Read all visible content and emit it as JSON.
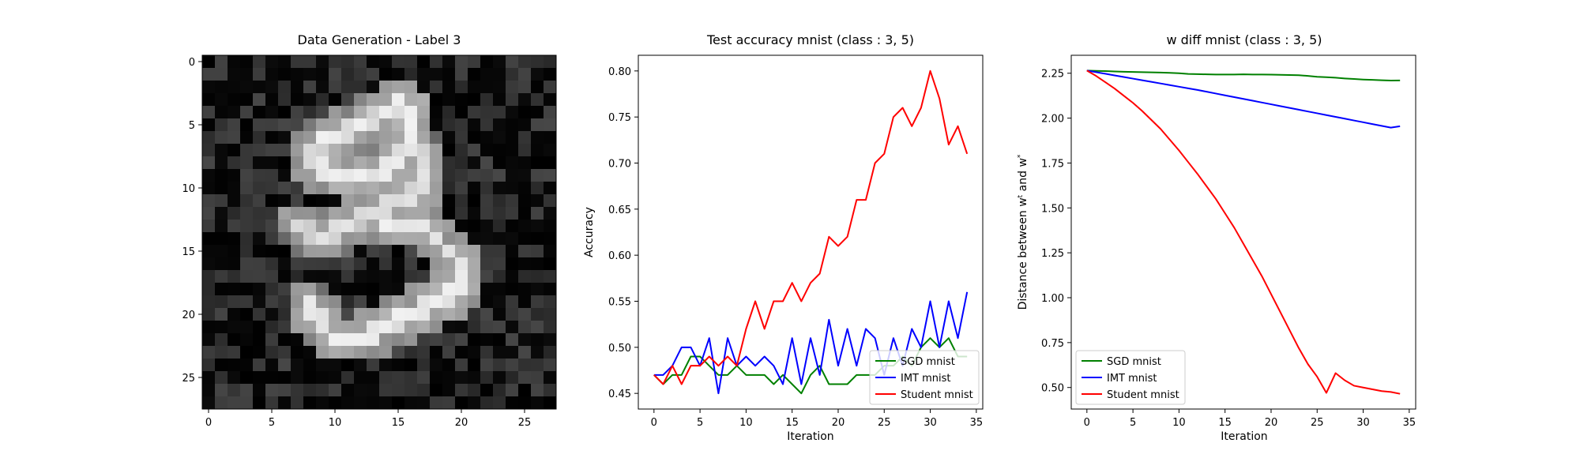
{
  "chart_data": [
    {
      "type": "heatmap",
      "title": "Data Generation - Label 3",
      "xticks": [
        0,
        5,
        10,
        15,
        20,
        25
      ],
      "yticks": [
        0,
        5,
        10,
        15,
        20,
        25
      ],
      "xlim": [
        -0.5,
        27.5
      ],
      "ylim": [
        27.5,
        -0.5
      ],
      "colormap": "gray",
      "grid_size": [
        28,
        28
      ],
      "strokes": [
        {
          "p": [
            [
              8,
              7
            ],
            [
              10,
              6
            ],
            [
              12,
              5
            ],
            [
              14,
              4
            ],
            [
              15,
              3
            ],
            [
              16,
              4
            ],
            [
              16,
              6
            ],
            [
              15,
              8
            ],
            [
              13,
              9
            ],
            [
              10,
              9
            ],
            [
              8,
              8
            ]
          ],
          "v": 0.95
        },
        {
          "p": [
            [
              16,
              6
            ],
            [
              17,
              8
            ],
            [
              17,
              10
            ],
            [
              15,
              11
            ],
            [
              13,
              12
            ],
            [
              11,
              13
            ],
            [
              9,
              14
            ],
            [
              7,
              13
            ]
          ],
          "v": 0.9
        },
        {
          "p": [
            [
              13,
              12
            ],
            [
              15,
              13
            ],
            [
              17,
              13
            ],
            [
              18,
              14
            ],
            [
              19,
              15
            ],
            [
              20,
              16
            ],
            [
              20,
              18
            ],
            [
              18,
              19
            ],
            [
              16,
              20
            ],
            [
              14,
              21
            ],
            [
              12,
              22
            ],
            [
              10,
              22
            ],
            [
              9,
              21
            ],
            [
              8,
              19
            ]
          ],
          "v": 0.95
        }
      ]
    },
    {
      "type": "line",
      "title": "Test accuracy mnist (class : 3, 5)",
      "xlabel": "Iteration",
      "ylabel": "Accuracy",
      "xlim": [
        -1.7,
        35.7
      ],
      "ylim": [
        0.433,
        0.817
      ],
      "xticks": [
        0,
        5,
        10,
        15,
        20,
        25,
        30,
        35
      ],
      "yticks": [
        0.45,
        0.5,
        0.55,
        0.6,
        0.65,
        0.7,
        0.75,
        0.8
      ],
      "ytick_labels": [
        "0.45",
        "0.50",
        "0.55",
        "0.60",
        "0.65",
        "0.70",
        "0.75",
        "0.80"
      ],
      "x": [
        0,
        1,
        2,
        3,
        4,
        5,
        6,
        7,
        8,
        9,
        10,
        11,
        12,
        13,
        14,
        15,
        16,
        17,
        18,
        19,
        20,
        21,
        22,
        23,
        24,
        25,
        26,
        27,
        28,
        29,
        30,
        31,
        32,
        33,
        34
      ],
      "legend": "lower-right",
      "series": [
        {
          "name": "SGD mnist",
          "color": "#008000",
          "values": [
            0.47,
            0.46,
            0.47,
            0.47,
            0.49,
            0.49,
            0.48,
            0.47,
            0.47,
            0.48,
            0.47,
            0.47,
            0.47,
            0.46,
            0.47,
            0.46,
            0.45,
            0.47,
            0.48,
            0.46,
            0.46,
            0.46,
            0.47,
            0.47,
            0.47,
            0.48,
            0.48,
            0.49,
            0.48,
            0.5,
            0.51,
            0.5,
            0.51,
            0.49,
            0.49
          ]
        },
        {
          "name": "IMT mnist",
          "color": "#0000ff",
          "values": [
            0.47,
            0.47,
            0.48,
            0.5,
            0.5,
            0.48,
            0.51,
            0.45,
            0.51,
            0.48,
            0.49,
            0.48,
            0.49,
            0.48,
            0.46,
            0.51,
            0.46,
            0.51,
            0.47,
            0.53,
            0.48,
            0.52,
            0.48,
            0.52,
            0.51,
            0.47,
            0.51,
            0.48,
            0.52,
            0.5,
            0.55,
            0.5,
            0.55,
            0.51,
            0.56
          ]
        },
        {
          "name": "Student mnist",
          "color": "#ff0000",
          "values": [
            0.47,
            0.46,
            0.48,
            0.46,
            0.48,
            0.48,
            0.49,
            0.48,
            0.49,
            0.48,
            0.52,
            0.55,
            0.52,
            0.55,
            0.55,
            0.57,
            0.55,
            0.57,
            0.58,
            0.62,
            0.61,
            0.62,
            0.66,
            0.66,
            0.7,
            0.71,
            0.75,
            0.76,
            0.74,
            0.76,
            0.8,
            0.77,
            0.72,
            0.74,
            0.71
          ]
        }
      ]
    },
    {
      "type": "line",
      "title": "w diff mnist (class : 3, 5)",
      "xlabel": "Iteration",
      "ylabel": "Distance between w",
      "ylabel_sup1": "t",
      "ylabel_mid": " and w",
      "ylabel_sup2": "*",
      "xlim": [
        -1.7,
        35.7
      ],
      "ylim": [
        0.38,
        2.35
      ],
      "xticks": [
        0,
        5,
        10,
        15,
        20,
        25,
        30,
        35
      ],
      "yticks": [
        0.5,
        0.75,
        1.0,
        1.25,
        1.5,
        1.75,
        2.0,
        2.25
      ],
      "ytick_labels": [
        "0.50",
        "0.75",
        "1.00",
        "1.25",
        "1.50",
        "1.75",
        "2.00",
        "2.25"
      ],
      "x": [
        0,
        1,
        2,
        3,
        4,
        5,
        6,
        7,
        8,
        9,
        10,
        11,
        12,
        13,
        14,
        15,
        16,
        17,
        18,
        19,
        20,
        21,
        22,
        23,
        24,
        25,
        26,
        27,
        28,
        29,
        30,
        31,
        32,
        33,
        34
      ],
      "legend": "lower-left",
      "series": [
        {
          "name": "SGD mnist",
          "color": "#008000",
          "values": [
            2.265,
            2.263,
            2.262,
            2.26,
            2.258,
            2.257,
            2.256,
            2.255,
            2.254,
            2.252,
            2.25,
            2.246,
            2.245,
            2.244,
            2.243,
            2.243,
            2.243,
            2.244,
            2.243,
            2.243,
            2.242,
            2.241,
            2.24,
            2.239,
            2.235,
            2.23,
            2.228,
            2.225,
            2.221,
            2.218,
            2.215,
            2.213,
            2.211,
            2.209,
            2.21
          ]
        },
        {
          "name": "IMT mnist",
          "color": "#0000ff",
          "values": [
            2.265,
            2.256,
            2.247,
            2.238,
            2.229,
            2.22,
            2.211,
            2.202,
            2.193,
            2.184,
            2.175,
            2.166,
            2.157,
            2.147,
            2.137,
            2.127,
            2.117,
            2.107,
            2.097,
            2.087,
            2.077,
            2.067,
            2.057,
            2.047,
            2.037,
            2.027,
            2.017,
            2.007,
            1.997,
            1.987,
            1.977,
            1.967,
            1.957,
            1.947,
            1.955
          ]
        },
        {
          "name": "Student mnist",
          "color": "#ff0000",
          "values": [
            2.265,
            2.235,
            2.2,
            2.165,
            2.125,
            2.085,
            2.04,
            1.99,
            1.94,
            1.88,
            1.82,
            1.755,
            1.69,
            1.62,
            1.55,
            1.47,
            1.39,
            1.3,
            1.21,
            1.12,
            1.02,
            0.92,
            0.82,
            0.72,
            0.63,
            0.56,
            0.47,
            0.58,
            0.54,
            0.51,
            0.5,
            0.49,
            0.48,
            0.475,
            0.465
          ]
        }
      ]
    }
  ]
}
